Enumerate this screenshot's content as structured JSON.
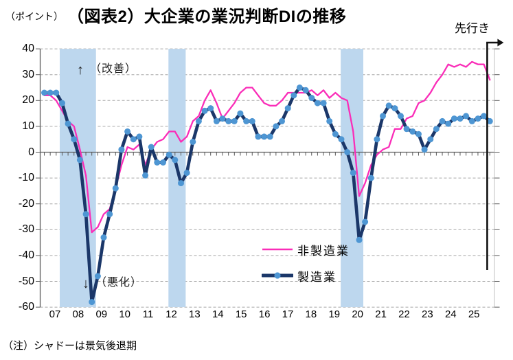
{
  "title": "（図表2）大企業の業況判断DIの推移",
  "unit_label": "（ポイント）",
  "outlook_label": "先行き",
  "note": "（注）シャドーは景気後退期",
  "annotations": {
    "improve_arrow": "↑",
    "improve_text": "（改善）",
    "worsen_arrow": "↓",
    "worsen_text": "（悪化）"
  },
  "legend": {
    "non_manufacturing_label": "非製造業",
    "manufacturing_label": "製造業"
  },
  "colors": {
    "non_manufacturing_line": "#FA2DB8",
    "manufacturing_line": "#1B3769",
    "manufacturing_marker": "#4E96D3",
    "recession_band": "#BDD7EE",
    "gridline": "#A6A6A6",
    "axis": "#595959",
    "outlook_line": "#111111"
  },
  "chart_data": {
    "type": "line",
    "title": "（図表2）大企業の業況判断DIの推移",
    "ylabel": "（ポイント）",
    "ylim": [
      -60,
      40
    ],
    "y_ticks": [
      40,
      30,
      20,
      10,
      0,
      -10,
      -20,
      -30,
      -40,
      -50,
      -60
    ],
    "x_tick_labels": [
      "07",
      "08",
      "09",
      "10",
      "11",
      "12",
      "13",
      "14",
      "15",
      "16",
      "17",
      "18",
      "19",
      "20",
      "21",
      "22",
      "23",
      "24",
      "25"
    ],
    "x_frequency": "quarterly",
    "x_start": "2007Q1",
    "x_end": "2025Q4",
    "last_point_is_forecast": true,
    "grid": "dashed-horizontal",
    "legend_position": "inside-lower-middle",
    "series": [
      {
        "name": "非製造業",
        "style": "plain-line",
        "values": [
          22,
          22,
          20,
          16,
          12,
          10,
          1,
          -9,
          -31,
          -29,
          -24,
          -22,
          -14,
          -5,
          2,
          1,
          3,
          -5,
          1,
          4,
          5,
          8,
          8,
          4,
          6,
          12,
          14,
          20,
          24,
          19,
          13,
          16,
          19,
          23,
          25,
          25,
          22,
          19,
          18,
          18,
          20,
          23,
          23,
          23,
          23,
          24,
          22,
          24,
          21,
          23,
          21,
          20,
          8,
          -17,
          -12,
          -5,
          -1,
          1,
          2,
          9,
          9,
          13,
          14,
          19,
          20,
          23,
          27,
          30,
          34,
          33,
          34,
          33,
          35,
          34,
          34,
          28
        ]
      },
      {
        "name": "製造業",
        "style": "thick-line-with-markers",
        "values": [
          23,
          23,
          23,
          19,
          11,
          5,
          -3,
          -24,
          -58,
          -48,
          -33,
          -24,
          -14,
          1,
          8,
          5,
          6,
          -9,
          2,
          -4,
          -4,
          -1,
          -3,
          -12,
          -8,
          4,
          12,
          16,
          17,
          12,
          13,
          12,
          12,
          15,
          12,
          12,
          6,
          6,
          6,
          10,
          12,
          17,
          22,
          25,
          24,
          21,
          19,
          19,
          12,
          7,
          5,
          0,
          -8,
          -34,
          -27,
          -10,
          5,
          14,
          18,
          17,
          14,
          9,
          8,
          7,
          1,
          5,
          9,
          12,
          11,
          13,
          13,
          14,
          12,
          13,
          14,
          12
        ]
      }
    ],
    "recession_bands_quarter_index": [
      [
        2.6,
        8.7
      ],
      [
        20.9,
        23.8
      ],
      [
        49.9,
        53.7
      ]
    ]
  }
}
